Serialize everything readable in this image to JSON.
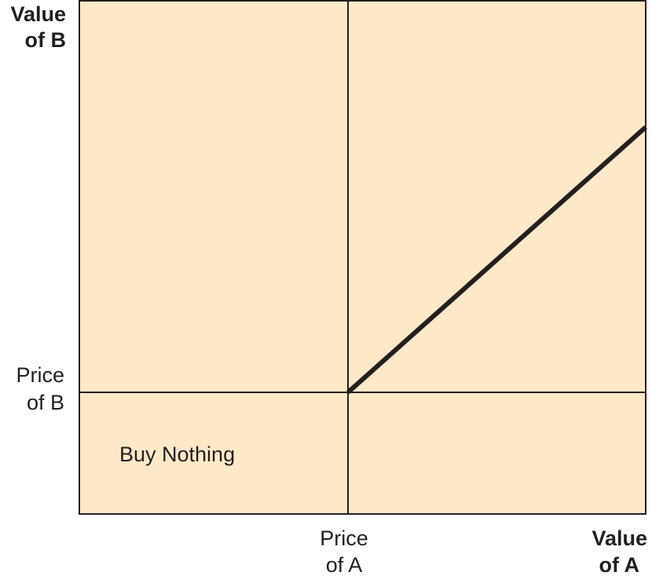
{
  "colors": {
    "background_fill": "#fde9c7",
    "line": "#231f20",
    "text": "#231f20"
  },
  "y_axis_title": {
    "line1": "Value",
    "line2": "of B"
  },
  "x_axis_title": {
    "line1": "Value",
    "line2": "of A"
  },
  "price_of_b": {
    "line1": "Price",
    "line2": "of B"
  },
  "price_of_a": {
    "line1": "Price",
    "line2": "of A"
  },
  "region_label": "Buy Nothing"
}
